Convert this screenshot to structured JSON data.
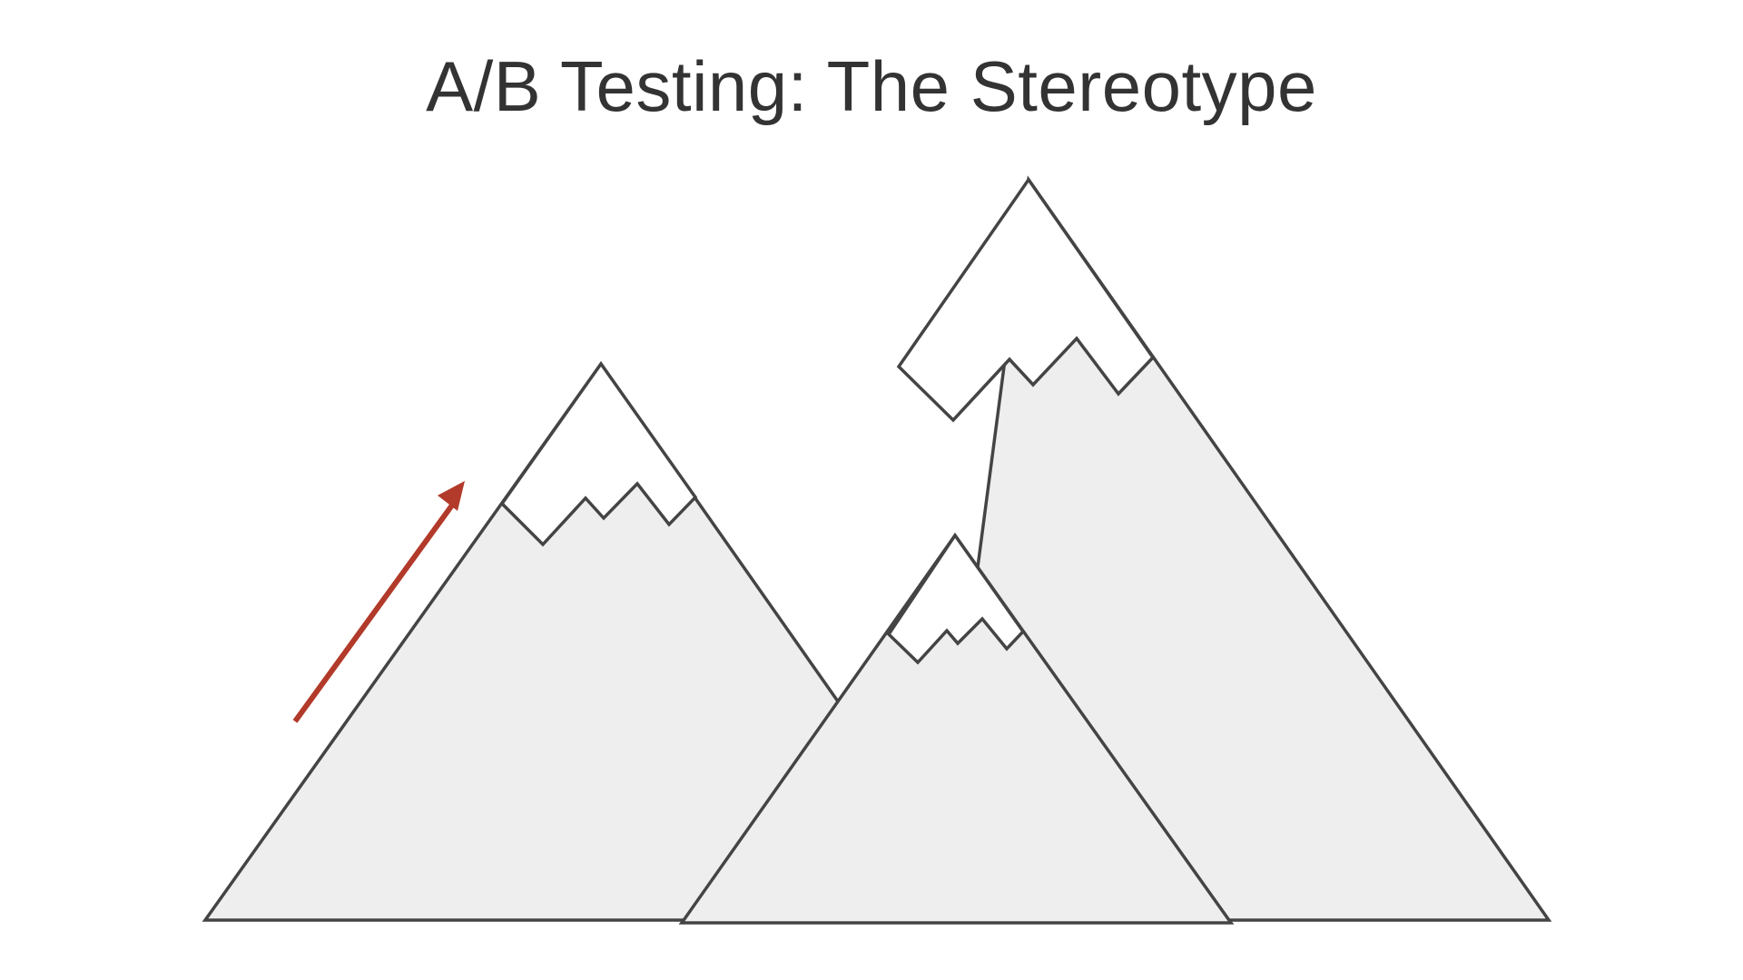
{
  "slide": {
    "title": "A/B Testing: The Stereotype"
  },
  "colors": {
    "background": "#ffffff",
    "title_text": "#333333",
    "mountain_fill": "#eeeeee",
    "snow_fill": "#ffffff",
    "outline": "#444444",
    "arrow": "#b23a2a"
  },
  "diagram": {
    "elements": [
      {
        "name": "left-mountain",
        "kind": "mountain with snow cap"
      },
      {
        "name": "tall-right-mountain",
        "kind": "mountain with snow cap"
      },
      {
        "name": "front-center-mountain",
        "kind": "mountain with snow cap"
      },
      {
        "name": "ascent-arrow",
        "kind": "arrow pointing up the left slope"
      }
    ]
  }
}
